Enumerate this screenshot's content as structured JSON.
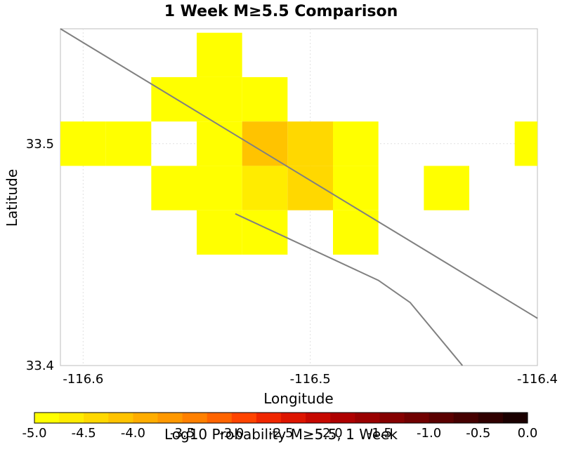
{
  "chart_data": {
    "type": "heatmap",
    "title": "1 Week M≥5.5 Comparison",
    "xlabel": "Longitude",
    "ylabel": "Latitude",
    "xlim": [
      -116.61,
      -116.4
    ],
    "ylim": [
      33.4,
      33.5518
    ],
    "x_ticks": [
      {
        "value": -116.6,
        "label": "-116.6"
      },
      {
        "value": -116.5,
        "label": "-116.5"
      },
      {
        "value": -116.4,
        "label": "-116.4"
      }
    ],
    "y_ticks": [
      {
        "value": 33.5,
        "label": "33.5"
      },
      {
        "value": 33.4,
        "label": "33.4"
      }
    ],
    "grid": true,
    "cell_size_deg": 0.02,
    "cells": [
      {
        "lon": -116.6,
        "lat": 33.5,
        "value": -5.0
      },
      {
        "lon": -116.58,
        "lat": 33.5,
        "value": -5.0
      },
      {
        "lon": -116.56,
        "lat": 33.52,
        "value": -5.0
      },
      {
        "lon": -116.56,
        "lat": 33.48,
        "value": -5.0
      },
      {
        "lon": -116.54,
        "lat": 33.54,
        "value": -5.0
      },
      {
        "lon": -116.54,
        "lat": 33.52,
        "value": -4.85
      },
      {
        "lon": -116.54,
        "lat": 33.5,
        "value": -4.85
      },
      {
        "lon": -116.54,
        "lat": 33.48,
        "value": -4.85
      },
      {
        "lon": -116.54,
        "lat": 33.46,
        "value": -5.0
      },
      {
        "lon": -116.52,
        "lat": 33.52,
        "value": -5.0
      },
      {
        "lon": -116.52,
        "lat": 33.5,
        "value": -4.25
      },
      {
        "lon": -116.52,
        "lat": 33.48,
        "value": -4.7
      },
      {
        "lon": -116.52,
        "lat": 33.46,
        "value": -5.0
      },
      {
        "lon": -116.5,
        "lat": 33.5,
        "value": -4.3
      },
      {
        "lon": -116.5,
        "lat": 33.48,
        "value": -4.35
      },
      {
        "lon": -116.48,
        "lat": 33.5,
        "value": -4.85
      },
      {
        "lon": -116.48,
        "lat": 33.48,
        "value": -5.0
      },
      {
        "lon": -116.48,
        "lat": 33.46,
        "value": -5.0
      },
      {
        "lon": -116.44,
        "lat": 33.48,
        "value": -5.0
      },
      {
        "lon": -116.4,
        "lat": 33.5,
        "value": -5.0
      }
    ],
    "faults": [
      [
        [
          -116.61,
          33.5518
        ],
        [
          -116.4,
          33.4213
        ]
      ],
      [
        [
          -116.533,
          33.4684
        ],
        [
          -116.47,
          33.4384
        ],
        [
          -116.456,
          33.4284
        ],
        [
          -116.433,
          33.4
        ]
      ]
    ],
    "colorbar": {
      "min": -5.0,
      "max": 0.0,
      "step": 0.25,
      "label": "Log10 Probability M≥5.5, 1 Week",
      "tick_labels": [
        "-5.0",
        "-4.5",
        "-4.0",
        "-3.5",
        "-3.0",
        "-2.5",
        "-2.0",
        "-1.5",
        "-1.0",
        "-0.5",
        "0.0"
      ],
      "colors": [
        "#ffff00",
        "#ffec00",
        "#ffd800",
        "#ffc300",
        "#ffad00",
        "#ff9800",
        "#ff8000",
        "#ff6400",
        "#ff4400",
        "#f02600",
        "#dd1500",
        "#c60800",
        "#ae0000",
        "#990000",
        "#850000",
        "#700000",
        "#5a0000",
        "#450000",
        "#300000",
        "#1a0000"
      ]
    }
  }
}
